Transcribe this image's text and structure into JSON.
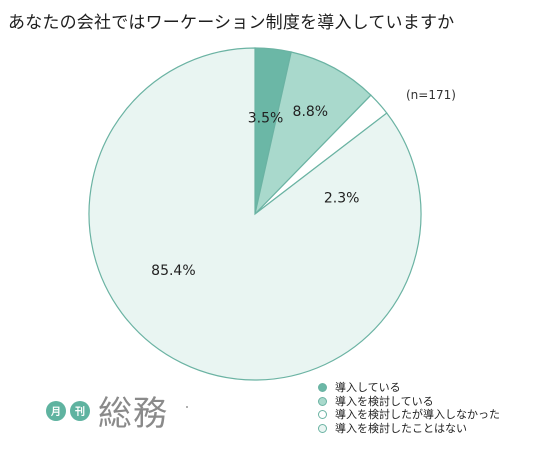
{
  "chart_data": {
    "type": "pie",
    "title": "あなたの会社ではワーケーション制度を導入していますか",
    "sample_size": "(n=171)",
    "categories": [
      "導入している",
      "導入を検討している",
      "導入を検討したが導入しなかった",
      "導入を検討したことはない"
    ],
    "values": [
      3.5,
      8.8,
      2.3,
      85.4
    ],
    "value_labels": [
      "3.5%",
      "8.8%",
      "2.3%",
      "85.4%"
    ],
    "colors": [
      "#6bb7a6",
      "#a9d9cc",
      "#ffffff",
      "#e9f5f2"
    ],
    "stroke_color": "#6bb3a3",
    "legend": "bottom-right",
    "start_angle": "12 o'clock, clockwise"
  },
  "logo": {
    "badge1": "月",
    "badge2": "刊",
    "text": "総務"
  }
}
